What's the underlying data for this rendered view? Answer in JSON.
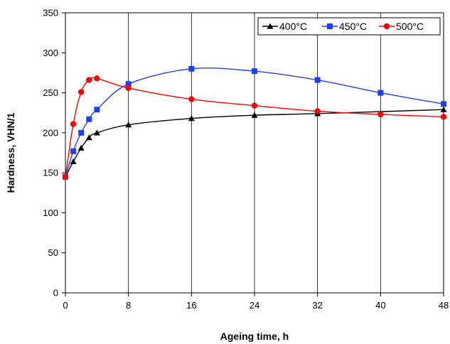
{
  "chart_data": {
    "type": "line",
    "xlabel": "Ageing time, h",
    "ylabel": "Hardness, VHN/1",
    "xlim": [
      0,
      48
    ],
    "ylim": [
      0,
      350
    ],
    "x_ticks": [
      0,
      8,
      16,
      24,
      32,
      40,
      48
    ],
    "y_ticks": [
      0,
      50,
      100,
      150,
      200,
      250,
      300,
      350
    ],
    "grid": "vertical",
    "legend_position": "top-right",
    "series": [
      {
        "name": "400°C",
        "color": "#000000",
        "marker": "triangle",
        "x": [
          0,
          1,
          2,
          3,
          4,
          8,
          16,
          24,
          32,
          48
        ],
        "y": [
          145,
          164,
          181,
          194,
          200,
          210,
          218,
          222,
          224,
          229
        ]
      },
      {
        "name": "450°C",
        "color": "#1f3fff",
        "marker": "square",
        "x": [
          0,
          1,
          2,
          3,
          4,
          8,
          16,
          24,
          32,
          40,
          48
        ],
        "y": [
          145,
          177,
          200,
          217,
          229,
          261,
          280,
          277,
          266,
          250,
          236
        ]
      },
      {
        "name": "500°C",
        "color": "#ff0000",
        "marker": "circle",
        "x": [
          0,
          1,
          2,
          3,
          4,
          8,
          16,
          24,
          32,
          40,
          48
        ],
        "y": [
          145,
          211,
          251,
          266,
          268,
          256,
          242,
          234,
          227,
          223,
          220
        ]
      }
    ]
  }
}
